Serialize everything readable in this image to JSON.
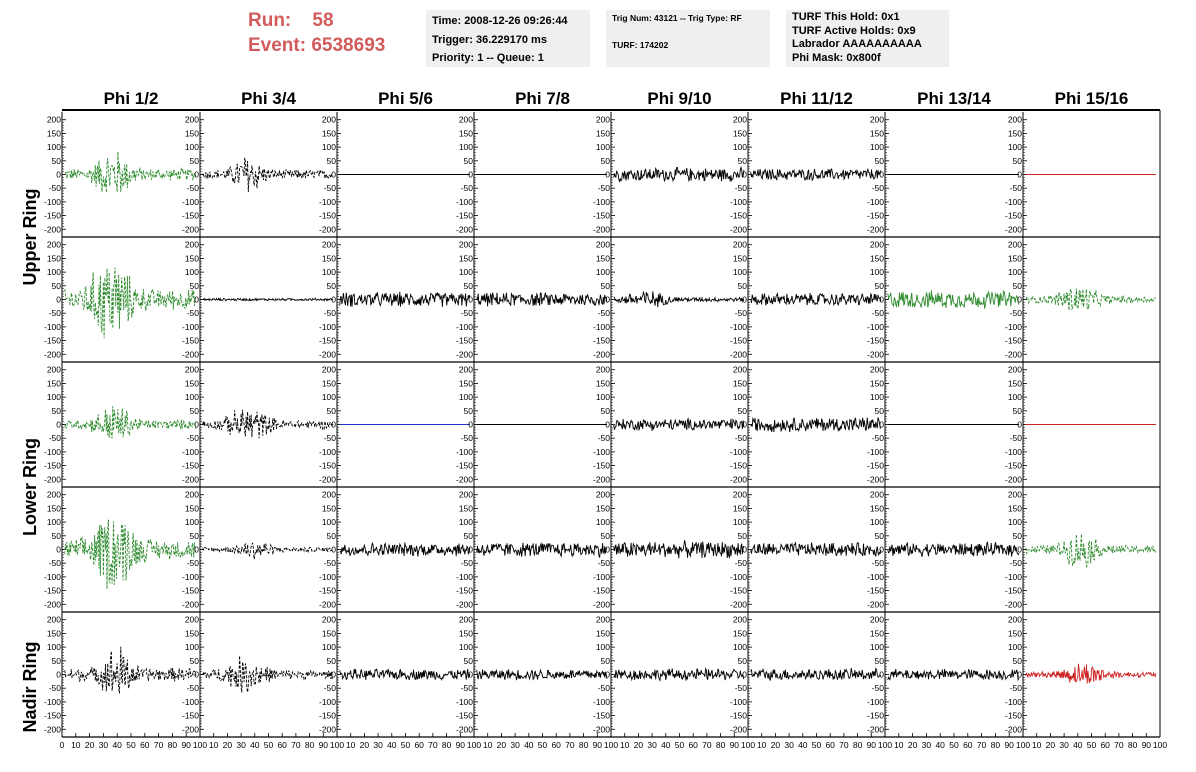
{
  "header": {
    "run_label": "Run:",
    "run_value": "58",
    "event_label": "Event:",
    "event_value": "6538693",
    "time_info": [
      "Time: 2008-12-26 09:26:44",
      "Trigger: 36.229170 ms",
      "Priority: 1 -- Queue: 1"
    ],
    "trig_info": [
      "Trig Num: 43121 -- Trig Type: RF",
      "TURF: 174202"
    ],
    "turf_info": [
      "TURF This Hold: 0x1",
      "TURF Active Holds: 0x9",
      "Labrador AAAAAAAAAA",
      "Phi Mask: 0x800f"
    ]
  },
  "colors": {
    "green": "#2e8b2e",
    "black": "#000000",
    "red": "#cc2222",
    "blue": "#2233cc",
    "run_text": "#d25c5c",
    "box_bg": "#efefef"
  },
  "chart_data": {
    "type": "line",
    "columns": [
      "Phi 1/2",
      "Phi 3/4",
      "Phi 5/6",
      "Phi 7/8",
      "Phi 9/10",
      "Phi 11/12",
      "Phi 13/14",
      "Phi 15/16"
    ],
    "rows": [
      "Upper Ring",
      "Lower Ring",
      "Nadir Ring"
    ],
    "xlim": [
      0,
      100
    ],
    "ylim": [
      -210,
      210
    ],
    "x_ticks": [
      0,
      10,
      20,
      30,
      40,
      50,
      60,
      70,
      80,
      90,
      100
    ],
    "x_tick_labels": [
      "0",
      "10",
      "20",
      "30",
      "40",
      "50",
      "60",
      "70",
      "80",
      "90",
      "100"
    ],
    "y_ticks": [
      -200,
      -150,
      -100,
      -50,
      0,
      50,
      100,
      150,
      200
    ],
    "y_tick_labels": [
      "-200",
      "-150",
      "-100",
      "-50",
      "0",
      "50",
      "100",
      "150",
      "200"
    ],
    "panels": [
      [
        {
          "color": "green",
          "style": "dashed",
          "amp": 110,
          "center": 37,
          "width": 12
        },
        {
          "color": "black",
          "style": "dashed",
          "amp": 90,
          "center": 35,
          "width": 10
        },
        {
          "color": "black",
          "style": "solid",
          "amp": 0,
          "center": 50,
          "width": 0
        },
        {
          "color": "black",
          "style": "solid",
          "amp": 0,
          "center": 50,
          "width": 0
        },
        {
          "color": "black",
          "style": "solid",
          "amp": 28,
          "center": 50,
          "width": 0
        },
        {
          "color": "black",
          "style": "solid",
          "amp": 24,
          "center": 50,
          "width": 0
        },
        {
          "color": "black",
          "style": "solid",
          "amp": 0,
          "center": 50,
          "width": 0
        },
        {
          "color": "red",
          "style": "solid",
          "amp": 0,
          "center": 50,
          "width": 0
        }
      ],
      [
        {
          "color": "green",
          "style": "dashed",
          "amp": 190,
          "center": 35,
          "width": 14
        },
        {
          "color": "black",
          "style": "solid",
          "amp": 5,
          "center": 50,
          "width": 0
        },
        {
          "color": "black",
          "style": "solid",
          "amp": 30,
          "center": 50,
          "width": 0
        },
        {
          "color": "black",
          "style": "solid",
          "amp": 28,
          "center": 50,
          "width": 0
        },
        {
          "color": "black",
          "style": "solid",
          "amp": 40,
          "center": 25,
          "width": 15
        },
        {
          "color": "black",
          "style": "solid",
          "amp": 26,
          "center": 50,
          "width": 0
        },
        {
          "color": "green",
          "style": "solid",
          "amp": 36,
          "center": 50,
          "width": 0
        },
        {
          "color": "green",
          "style": "dashed",
          "amp": 65,
          "center": 40,
          "width": 14
        }
      ],
      [
        {
          "color": "green",
          "style": "dashed",
          "amp": 90,
          "center": 38,
          "width": 12
        },
        {
          "color": "black",
          "style": "dashed",
          "amp": 80,
          "center": 35,
          "width": 14
        },
        {
          "color": "blue",
          "style": "solid",
          "amp": 0,
          "center": 50,
          "width": 0
        },
        {
          "color": "black",
          "style": "solid",
          "amp": 0,
          "center": 50,
          "width": 0
        },
        {
          "color": "black",
          "style": "solid",
          "amp": 24,
          "center": 50,
          "width": 0
        },
        {
          "color": "black",
          "style": "solid",
          "amp": 30,
          "center": 50,
          "width": 0
        },
        {
          "color": "black",
          "style": "solid",
          "amp": 0,
          "center": 50,
          "width": 0
        },
        {
          "color": "red",
          "style": "solid",
          "amp": 0,
          "center": 50,
          "width": 0
        }
      ],
      [
        {
          "color": "green",
          "style": "dashed",
          "amp": 180,
          "center": 38,
          "width": 14
        },
        {
          "color": "black",
          "style": "dashed",
          "amp": 45,
          "center": 40,
          "width": 12
        },
        {
          "color": "black",
          "style": "solid",
          "amp": 28,
          "center": 50,
          "width": 0
        },
        {
          "color": "black",
          "style": "solid",
          "amp": 30,
          "center": 50,
          "width": 0
        },
        {
          "color": "black",
          "style": "solid",
          "amp": 34,
          "center": 50,
          "width": 0
        },
        {
          "color": "black",
          "style": "solid",
          "amp": 28,
          "center": 50,
          "width": 0
        },
        {
          "color": "black",
          "style": "solid",
          "amp": 28,
          "center": 50,
          "width": 0
        },
        {
          "color": "green",
          "style": "dashed",
          "amp": 80,
          "center": 42,
          "width": 12
        }
      ],
      [
        {
          "color": "black",
          "style": "dashed",
          "amp": 125,
          "center": 40,
          "width": 10
        },
        {
          "color": "black",
          "style": "dashed",
          "amp": 80,
          "center": 33,
          "width": 14
        },
        {
          "color": "black",
          "style": "solid",
          "amp": 22,
          "center": 50,
          "width": 0
        },
        {
          "color": "black",
          "style": "solid",
          "amp": 22,
          "center": 50,
          "width": 0
        },
        {
          "color": "black",
          "style": "solid",
          "amp": 24,
          "center": 50,
          "width": 0
        },
        {
          "color": "black",
          "style": "solid",
          "amp": 24,
          "center": 50,
          "width": 0
        },
        {
          "color": "black",
          "style": "solid",
          "amp": 22,
          "center": 50,
          "width": 0
        },
        {
          "color": "red",
          "style": "solid",
          "amp": 50,
          "center": 45,
          "width": 16
        }
      ]
    ]
  }
}
